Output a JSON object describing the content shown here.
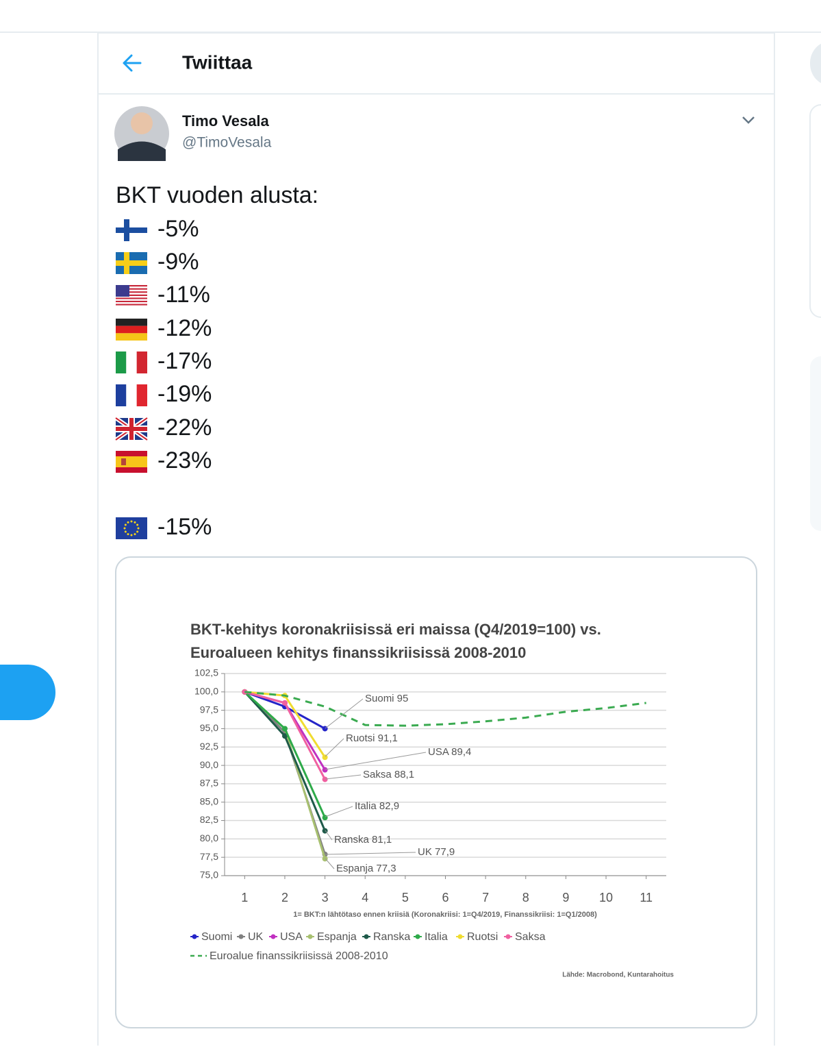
{
  "header": {
    "title": "Twiittaa"
  },
  "tweet": {
    "author": {
      "name": "Timo Vesala",
      "handle": "@TimoVesala"
    },
    "intro": "BKT vuoden alusta:",
    "items": [
      "-5%",
      "-9%",
      "-11%",
      "-12%",
      "-17%",
      "-19%",
      "-22%",
      "-23%"
    ],
    "eu_item": "-15%"
  },
  "chart_data": {
    "type": "line",
    "title": [
      "BKT-kehitys koronakriisissä eri maissa (Q4/2019=100) vs.",
      "Euroalueen kehitys finanssikriisissä 2008-2010"
    ],
    "x_label": "1= BKT:n lähtötaso ennen kriisiä (Koronakriisi: 1=Q4/2019, Finanssikriisi: 1=Q1/2008)",
    "source": "Lähde: Macrobond, Kuntarahoitus",
    "xlim": [
      0.5,
      11.5
    ],
    "xticks": [
      1,
      2,
      3,
      4,
      5,
      6,
      7,
      8,
      9,
      10,
      11
    ],
    "ylim": [
      75,
      102.5
    ],
    "yticks": [
      {
        "value": 75,
        "label": "75,0"
      },
      {
        "value": 77.5,
        "label": "77,5"
      },
      {
        "value": 80,
        "label": "80,0"
      },
      {
        "value": 82.5,
        "label": "82,5"
      },
      {
        "value": 85,
        "label": "85,0"
      },
      {
        "value": 87.5,
        "label": "87,5"
      },
      {
        "value": 90,
        "label": "90,0"
      },
      {
        "value": 92.5,
        "label": "92,5"
      },
      {
        "value": 95,
        "label": "95,0"
      },
      {
        "value": 97.5,
        "label": "97,5"
      },
      {
        "value": 100,
        "label": "100,0"
      },
      {
        "value": 102.5,
        "label": "102,5"
      }
    ],
    "grid": true,
    "series": [
      {
        "name": "Suomi",
        "color": "#2424c8",
        "x": [
          1,
          2,
          3
        ],
        "values": [
          100,
          98,
          95
        ]
      },
      {
        "name": "UK",
        "color": "#808080",
        "x": [
          1,
          2,
          3
        ],
        "values": [
          100,
          94.5,
          77.9
        ]
      },
      {
        "name": "USA",
        "color": "#c030c0",
        "x": [
          1,
          2,
          3
        ],
        "values": [
          100,
          98.5,
          89.4
        ]
      },
      {
        "name": "Espanja",
        "color": "#a8c070",
        "x": [
          1,
          2,
          3
        ],
        "values": [
          100,
          95,
          77.3
        ]
      },
      {
        "name": "Ranska",
        "color": "#1f5a4a",
        "x": [
          1,
          2,
          3
        ],
        "values": [
          100,
          94,
          81.1
        ]
      },
      {
        "name": "Italia",
        "color": "#2eaa4a",
        "x": [
          1,
          2,
          3
        ],
        "values": [
          100,
          95,
          82.9
        ]
      },
      {
        "name": "Ruotsi",
        "color": "#f0dc30",
        "x": [
          1,
          2,
          3
        ],
        "values": [
          100,
          99.5,
          91.1
        ]
      },
      {
        "name": "Saksa",
        "color": "#f060a0",
        "x": [
          1,
          2,
          3
        ],
        "values": [
          100,
          98.5,
          88.1
        ]
      },
      {
        "name": "Euroalue finanssikriisissä 2008-2010",
        "color": "#3aaa50",
        "dashed": true,
        "x": [
          1,
          2,
          3,
          4,
          5,
          6,
          7,
          8,
          9,
          10,
          11
        ],
        "values": [
          100,
          99.5,
          98,
          95.5,
          95.4,
          95.6,
          96,
          96.5,
          97.3,
          97.8,
          98.5
        ]
      }
    ],
    "annotations": [
      "Suomi 95",
      "Ruotsi 91,1",
      "USA 89,4",
      "Saksa 88,1",
      "Italia 82,9",
      "Ranska 81,1",
      "UK 77,9",
      "Espanja 77,3"
    ]
  }
}
